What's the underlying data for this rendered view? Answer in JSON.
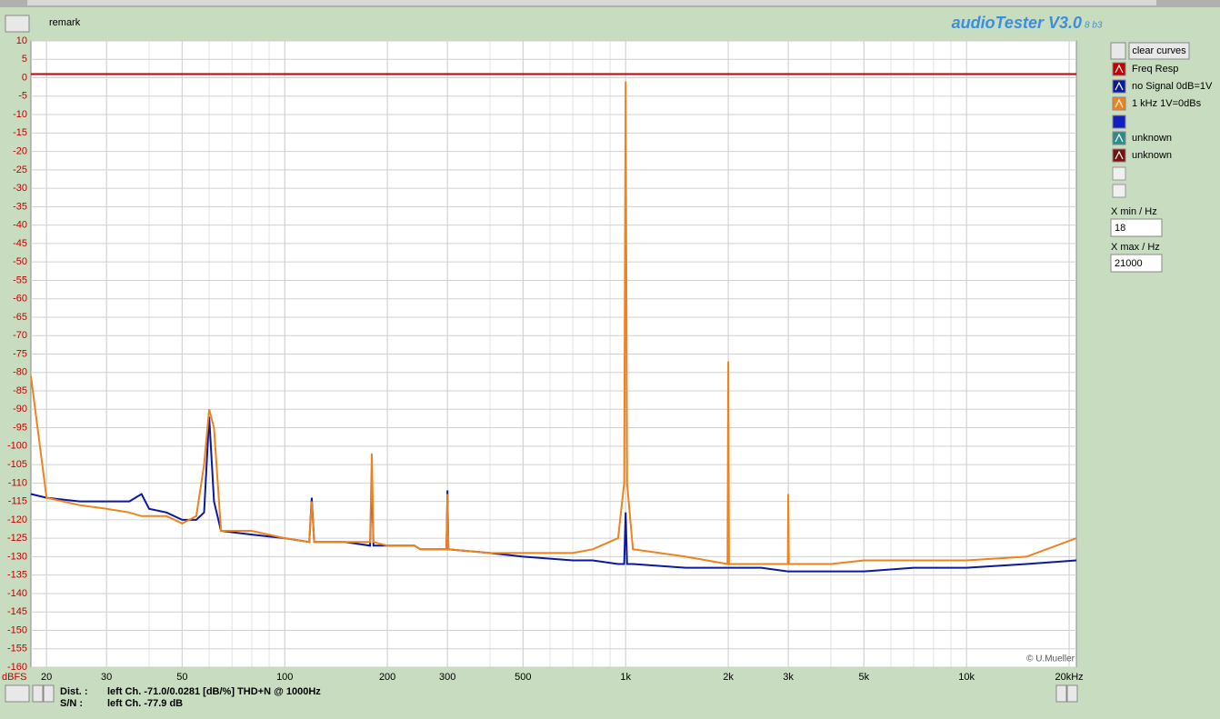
{
  "ui": {
    "remark": "remark",
    "app_title": "audioTester V3.0",
    "app_version": "8 b3",
    "clear_button": "clear curves",
    "xmin_label": "X min / Hz",
    "xmax_label": "X max / Hz",
    "copyright": "© U.Mueller",
    "dist_label": "Dist. :",
    "dist_value": "left Ch. -71.0/0.0281 [dB/%] THD+N @ 1000Hz",
    "sn_label": "S/N :",
    "sn_value": "left Ch. -77.9 dB",
    "legend_extra": [
      {
        "name": "unknown",
        "color": "#2e8b8b"
      },
      {
        "name": "unknown",
        "color": "#7a1010"
      }
    ]
  },
  "chart_data": {
    "type": "line",
    "y_label": "dBFS",
    "log_x": true,
    "grid": true,
    "xlim": [
      18,
      21000
    ],
    "ylim": [
      -160,
      10
    ],
    "xticks": [
      20,
      30,
      50,
      100,
      200,
      300,
      500,
      {
        "value": 1000,
        "label": "1k"
      },
      {
        "value": 2000,
        "label": "2k"
      },
      {
        "value": 3000,
        "label": "3k"
      },
      {
        "value": 5000,
        "label": "5k"
      },
      {
        "value": 10000,
        "label": "10k"
      },
      {
        "value": 20000,
        "label": "20kHz"
      }
    ],
    "yticks": [
      10,
      5,
      0,
      -5,
      -10,
      -15,
      -20,
      -25,
      -30,
      -35,
      -40,
      -45,
      -50,
      -55,
      -60,
      -65,
      -70,
      -75,
      -80,
      -85,
      -90,
      -95,
      -100,
      -105,
      -110,
      -115,
      -120,
      -125,
      -130,
      -135,
      -140,
      -145,
      -150,
      -155,
      -160
    ],
    "x": [
      18,
      20,
      25,
      30,
      35,
      38,
      40,
      45,
      50,
      55,
      58,
      60,
      62,
      65,
      80,
      100,
      118,
      120,
      122,
      150,
      178,
      180,
      182,
      200,
      240,
      250,
      298,
      300,
      302,
      400,
      500,
      700,
      800,
      950,
      990,
      1000,
      1010,
      1050,
      1500,
      1990,
      2000,
      2010,
      2500,
      2990,
      3000,
      3010,
      4000,
      5000,
      7000,
      10000,
      15000,
      21000
    ],
    "series": [
      {
        "name": "Freq Resp",
        "color": "#c00000",
        "values": [
          1,
          1,
          1,
          1,
          1,
          1,
          1,
          1,
          1,
          1,
          1,
          1,
          1,
          1,
          1,
          1,
          1,
          1,
          1,
          1,
          1,
          1,
          1,
          1,
          1,
          1,
          1,
          1,
          1,
          1,
          1,
          1,
          1,
          1,
          1,
          1,
          1,
          1,
          1,
          1,
          1,
          1,
          1,
          1,
          1,
          1,
          1,
          1,
          1,
          1,
          1,
          1
        ]
      },
      {
        "name": "no Signal 0dB=1V",
        "color": "#0a1aa0",
        "values": [
          -113,
          -114,
          -115,
          -115,
          -115,
          -113,
          -117,
          -118,
          -120,
          -120,
          -118,
          -92,
          -115,
          -123,
          -124,
          -125,
          -126,
          -114,
          -126,
          -126,
          -127,
          -107,
          -127,
          -127,
          -127,
          -128,
          -128,
          -112,
          -128,
          -129,
          -130,
          -131,
          -131,
          -132,
          -132,
          -118,
          -132,
          -132,
          -133,
          -133,
          -133,
          -133,
          -133,
          -134,
          -134,
          -134,
          -134,
          -134,
          -133,
          -133,
          -132,
          -131
        ]
      },
      {
        "name": "1 kHz 1V=0dBs",
        "color": "#f0821e",
        "values": [
          -81,
          -114,
          -116,
          -117,
          -118,
          -119,
          -119,
          -119,
          -121,
          -119,
          -105,
          -90,
          -95,
          -123,
          -123,
          -125,
          -126,
          -115,
          -126,
          -126,
          -126,
          -102,
          -126,
          -127,
          -127,
          -128,
          -128,
          -113,
          -128,
          -129,
          -129,
          -129,
          -128,
          -125,
          -110,
          -1,
          -110,
          -128,
          -130,
          -132,
          -77,
          -132,
          -132,
          -132,
          -113,
          -132,
          -132,
          -131,
          -131,
          -131,
          -130,
          -125
        ]
      }
    ]
  }
}
